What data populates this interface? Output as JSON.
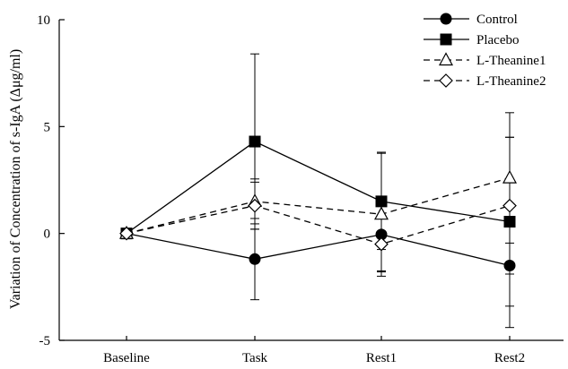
{
  "chart_data": {
    "type": "line",
    "title": "",
    "xlabel": "",
    "ylabel": "Variation of Concentration of s-IgA (Δμg/ml)",
    "categories": [
      "Baseline",
      "Task",
      "Rest1",
      "Rest2"
    ],
    "ylim": [
      -5,
      10
    ],
    "yticks": [
      -5,
      0,
      5,
      10
    ],
    "grid": false,
    "legend": "top-right",
    "series": [
      {
        "name": "Control",
        "marker": "filled-circle",
        "line": "solid",
        "values": [
          0,
          -1.2,
          -0.05,
          -1.5
        ],
        "errors": [
          null,
          1.9,
          1.7,
          2.9
        ]
      },
      {
        "name": "Placebo",
        "marker": "filled-square",
        "line": "solid",
        "values": [
          0,
          4.3,
          1.5,
          0.55
        ],
        "errors": [
          null,
          4.1,
          2.25,
          3.95
        ]
      },
      {
        "name": "L-Theanine1",
        "marker": "open-triangle",
        "line": "dashed",
        "values": [
          0,
          1.5,
          0.9,
          2.6
        ],
        "errors": [
          null,
          1.05,
          2.9,
          3.05
        ]
      },
      {
        "name": "L-Theanine2",
        "marker": "open-diamond",
        "line": "dashed",
        "values": [
          0,
          1.3,
          -0.5,
          1.3
        ],
        "errors": [
          null,
          1.1,
          1.3,
          3.2
        ]
      }
    ]
  }
}
